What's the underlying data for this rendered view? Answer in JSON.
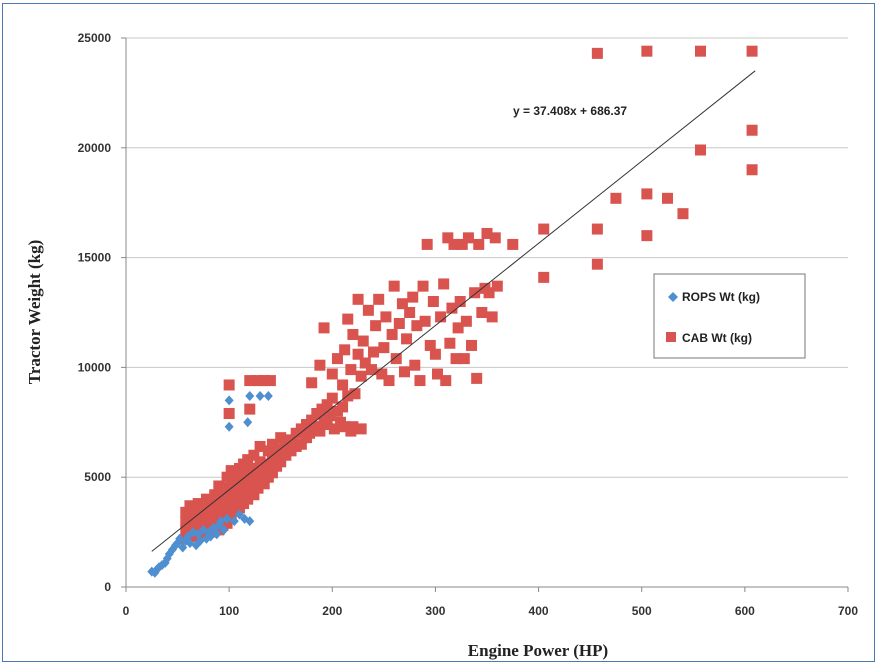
{
  "chart_data": {
    "type": "scatter",
    "xlabel": "Engine Power (HP)",
    "ylabel": "Tractor Weight (kg)",
    "xlim": [
      0,
      700
    ],
    "ylim": [
      0,
      25000
    ],
    "xticks": [
      "0",
      "100",
      "200",
      "300",
      "400",
      "500",
      "600",
      "700"
    ],
    "yticks": [
      "0",
      "5000",
      "10000",
      "15000",
      "20000",
      "25000"
    ],
    "grid": "horizontal",
    "legend_position": "right",
    "trendline": {
      "label": "y = 37.408x + 686.37",
      "slope": 37.408,
      "intercept": 686.37,
      "x_range": [
        25,
        610
      ],
      "color": "#333333"
    },
    "series": [
      {
        "name": "ROPS Wt (kg)",
        "marker": "diamond",
        "color": "#4f8fd0",
        "points": [
          [
            25,
            700
          ],
          [
            28,
            650
          ],
          [
            30,
            800
          ],
          [
            32,
            900
          ],
          [
            35,
            1000
          ],
          [
            38,
            1100
          ],
          [
            40,
            1300
          ],
          [
            42,
            1500
          ],
          [
            45,
            1700
          ],
          [
            48,
            1900
          ],
          [
            50,
            2000
          ],
          [
            52,
            2200
          ],
          [
            55,
            1800
          ],
          [
            58,
            2100
          ],
          [
            60,
            2300
          ],
          [
            62,
            2000
          ],
          [
            65,
            2500
          ],
          [
            68,
            1900
          ],
          [
            70,
            2400
          ],
          [
            72,
            2100
          ],
          [
            75,
            2600
          ],
          [
            78,
            2200
          ],
          [
            80,
            2500
          ],
          [
            82,
            2300
          ],
          [
            85,
            2700
          ],
          [
            88,
            2400
          ],
          [
            90,
            2800
          ],
          [
            92,
            3000
          ],
          [
            95,
            2600
          ],
          [
            98,
            3100
          ],
          [
            100,
            7300
          ],
          [
            100,
            8500
          ],
          [
            105,
            3000
          ],
          [
            110,
            3300
          ],
          [
            115,
            3100
          ],
          [
            120,
            3000
          ],
          [
            118,
            7500
          ],
          [
            120,
            8700
          ],
          [
            130,
            8700
          ],
          [
            138,
            8700
          ]
        ]
      },
      {
        "name": "CAB Wt (kg)",
        "marker": "square",
        "color": "#d9534f",
        "points": [
          [
            58,
            2200
          ],
          [
            58,
            2600
          ],
          [
            58,
            3000
          ],
          [
            58,
            3400
          ],
          [
            62,
            2400
          ],
          [
            62,
            2800
          ],
          [
            62,
            3200
          ],
          [
            62,
            3700
          ],
          [
            66,
            2300
          ],
          [
            66,
            2700
          ],
          [
            66,
            3100
          ],
          [
            66,
            3600
          ],
          [
            70,
            2500
          ],
          [
            70,
            2900
          ],
          [
            70,
            3300
          ],
          [
            70,
            3800
          ],
          [
            74,
            2400
          ],
          [
            74,
            2800
          ],
          [
            74,
            3200
          ],
          [
            74,
            3700
          ],
          [
            78,
            2600
          ],
          [
            78,
            3000
          ],
          [
            78,
            3500
          ],
          [
            78,
            4000
          ],
          [
            82,
            2500
          ],
          [
            82,
            2900
          ],
          [
            82,
            3400
          ],
          [
            82,
            3900
          ],
          [
            86,
            2700
          ],
          [
            86,
            3100
          ],
          [
            86,
            3600
          ],
          [
            86,
            4200
          ],
          [
            90,
            2600
          ],
          [
            90,
            3000
          ],
          [
            90,
            3500
          ],
          [
            90,
            4100
          ],
          [
            90,
            4600
          ],
          [
            94,
            2800
          ],
          [
            94,
            3300
          ],
          [
            94,
            3800
          ],
          [
            94,
            4400
          ],
          [
            98,
            2900
          ],
          [
            98,
            3400
          ],
          [
            98,
            3900
          ],
          [
            98,
            4500
          ],
          [
            98,
            5000
          ],
          [
            100,
            7900
          ],
          [
            100,
            9200
          ],
          [
            102,
            3200
          ],
          [
            102,
            3700
          ],
          [
            102,
            4300
          ],
          [
            102,
            4800
          ],
          [
            102,
            5300
          ],
          [
            106,
            3500
          ],
          [
            106,
            4000
          ],
          [
            106,
            4600
          ],
          [
            106,
            5200
          ],
          [
            110,
            3600
          ],
          [
            110,
            4200
          ],
          [
            110,
            4800
          ],
          [
            110,
            5400
          ],
          [
            114,
            3800
          ],
          [
            114,
            4400
          ],
          [
            114,
            5000
          ],
          [
            114,
            5600
          ],
          [
            118,
            4000
          ],
          [
            118,
            4600
          ],
          [
            118,
            5200
          ],
          [
            118,
            5800
          ],
          [
            120,
            8100
          ],
          [
            120,
            9400
          ],
          [
            124,
            4200
          ],
          [
            124,
            4800
          ],
          [
            124,
            5400
          ],
          [
            124,
            6000
          ],
          [
            128,
            9400
          ],
          [
            128,
            4500
          ],
          [
            128,
            5100
          ],
          [
            130,
            5700
          ],
          [
            130,
            6400
          ],
          [
            134,
            4700
          ],
          [
            134,
            5300
          ],
          [
            134,
            9400
          ],
          [
            138,
            5000
          ],
          [
            138,
            5600
          ],
          [
            138,
            6200
          ],
          [
            140,
            9400
          ],
          [
            142,
            5200
          ],
          [
            142,
            5800
          ],
          [
            142,
            6500
          ],
          [
            146,
            5500
          ],
          [
            146,
            6100
          ],
          [
            150,
            5700
          ],
          [
            150,
            6300
          ],
          [
            150,
            6800
          ],
          [
            155,
            6000
          ],
          [
            155,
            6500
          ],
          [
            160,
            6200
          ],
          [
            160,
            6700
          ],
          [
            165,
            6400
          ],
          [
            165,
            7000
          ],
          [
            170,
            6500
          ],
          [
            170,
            7200
          ],
          [
            175,
            6800
          ],
          [
            175,
            7400
          ],
          [
            178,
            7000
          ],
          [
            180,
            7600
          ],
          [
            180,
            9300
          ],
          [
            183,
            7300
          ],
          [
            185,
            7900
          ],
          [
            188,
            7100
          ],
          [
            188,
            10100
          ],
          [
            190,
            8100
          ],
          [
            192,
            7400
          ],
          [
            192,
            11800
          ],
          [
            195,
            7600
          ],
          [
            195,
            8300
          ],
          [
            198,
            7800
          ],
          [
            200,
            8600
          ],
          [
            200,
            9700
          ],
          [
            202,
            7200
          ],
          [
            205,
            8000
          ],
          [
            205,
            10400
          ],
          [
            208,
            7500
          ],
          [
            210,
            8200
          ],
          [
            210,
            9200
          ],
          [
            212,
            7300
          ],
          [
            212,
            10800
          ],
          [
            215,
            8700
          ],
          [
            215,
            12200
          ],
          [
            218,
            7100
          ],
          [
            218,
            9900
          ],
          [
            220,
            11500
          ],
          [
            220,
            7300
          ],
          [
            222,
            8800
          ],
          [
            225,
            10600
          ],
          [
            225,
            13100
          ],
          [
            228,
            7200
          ],
          [
            228,
            9600
          ],
          [
            230,
            11200
          ],
          [
            232,
            10200
          ],
          [
            235,
            12600
          ],
          [
            238,
            9900
          ],
          [
            240,
            10700
          ],
          [
            242,
            11900
          ],
          [
            245,
            13100
          ],
          [
            248,
            9700
          ],
          [
            250,
            10900
          ],
          [
            252,
            12300
          ],
          [
            255,
            9400
          ],
          [
            258,
            11500
          ],
          [
            260,
            13700
          ],
          [
            262,
            10400
          ],
          [
            265,
            12000
          ],
          [
            268,
            12900
          ],
          [
            270,
            9800
          ],
          [
            272,
            11300
          ],
          [
            275,
            12500
          ],
          [
            278,
            13200
          ],
          [
            280,
            10100
          ],
          [
            282,
            11900
          ],
          [
            285,
            9400
          ],
          [
            288,
            13700
          ],
          [
            290,
            12100
          ],
          [
            292,
            15600
          ],
          [
            295,
            11000
          ],
          [
            298,
            13000
          ],
          [
            300,
            10600
          ],
          [
            302,
            9700
          ],
          [
            305,
            12300
          ],
          [
            308,
            13800
          ],
          [
            310,
            9400
          ],
          [
            312,
            15900
          ],
          [
            314,
            11100
          ],
          [
            316,
            12700
          ],
          [
            318,
            15600
          ],
          [
            320,
            10400
          ],
          [
            322,
            11800
          ],
          [
            324,
            13000
          ],
          [
            326,
            15600
          ],
          [
            328,
            10400
          ],
          [
            330,
            12100
          ],
          [
            332,
            15900
          ],
          [
            335,
            11000
          ],
          [
            338,
            13400
          ],
          [
            340,
            9500
          ],
          [
            342,
            15600
          ],
          [
            345,
            12500
          ],
          [
            348,
            13600
          ],
          [
            350,
            16100
          ],
          [
            352,
            13400
          ],
          [
            355,
            12300
          ],
          [
            358,
            15900
          ],
          [
            360,
            13700
          ],
          [
            375,
            15600
          ],
          [
            405,
            16300
          ],
          [
            405,
            14100
          ],
          [
            457,
            24300
          ],
          [
            457,
            16300
          ],
          [
            457,
            14700
          ],
          [
            475,
            17700
          ],
          [
            505,
            24400
          ],
          [
            505,
            17900
          ],
          [
            505,
            16000
          ],
          [
            525,
            17700
          ],
          [
            540,
            17000
          ],
          [
            557,
            24400
          ],
          [
            557,
            19900
          ],
          [
            607,
            24400
          ],
          [
            607,
            20800
          ],
          [
            607,
            19000
          ]
        ]
      }
    ]
  }
}
